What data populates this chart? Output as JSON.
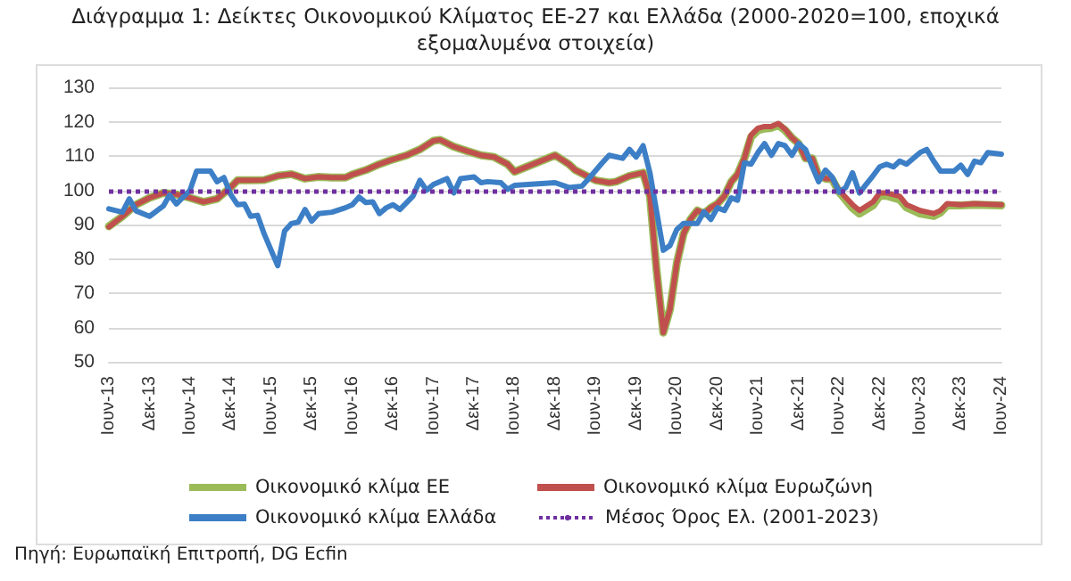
{
  "chart_data": {
    "type": "line",
    "title": "Διάγραμμα 1: Δείκτες Οικονομικού Κλίματος ΕΕ-27 και Ελλάδα (2000-2020=100, εποχικά εξομαλυμένα στοιχεία)",
    "annotations": [
      "Πηγή: Ευρωπαϊκή Επιτροπή, DG Ecfin"
    ],
    "xlim": [
      "2013-06",
      "2024-06"
    ],
    "xticks": [
      {
        "value": "2013-06",
        "label": "Ιουν-13"
      },
      {
        "value": "2013-12",
        "label": "Δεκ-13"
      },
      {
        "value": "2014-06",
        "label": "Ιουν-14"
      },
      {
        "value": "2014-12",
        "label": "Δεκ-14"
      },
      {
        "value": "2015-06",
        "label": "Ιουν-15"
      },
      {
        "value": "2015-12",
        "label": "Δεκ-15"
      },
      {
        "value": "2016-06",
        "label": "Ιουν-16"
      },
      {
        "value": "2016-12",
        "label": "Δεκ-16"
      },
      {
        "value": "2017-06",
        "label": "Ιουν-17"
      },
      {
        "value": "2017-12",
        "label": "Δεκ-17"
      },
      {
        "value": "2018-06",
        "label": "Ιουν-18"
      },
      {
        "value": "2018-12",
        "label": "Δεκ-18"
      },
      {
        "value": "2019-06",
        "label": "Ιουν-19"
      },
      {
        "value": "2019-12",
        "label": "Δεκ-19"
      },
      {
        "value": "2020-06",
        "label": "Ιουν-20"
      },
      {
        "value": "2020-12",
        "label": "Δεκ-20"
      },
      {
        "value": "2021-06",
        "label": "Ιουν-21"
      },
      {
        "value": "2021-12",
        "label": "Δεκ-21"
      },
      {
        "value": "2022-06",
        "label": "Ιουν-22"
      },
      {
        "value": "2022-12",
        "label": "Δεκ-22"
      },
      {
        "value": "2023-06",
        "label": "Ιουν-23"
      },
      {
        "value": "2023-12",
        "label": "Δεκ-23"
      },
      {
        "value": "2024-06",
        "label": "Ιουν-24"
      }
    ],
    "ylim": [
      50,
      130
    ],
    "yticks": [
      50,
      60,
      70,
      80,
      90,
      100,
      110,
      120,
      130
    ],
    "grid": "y",
    "legend": "bottom",
    "marker": "none",
    "line_style": "solid",
    "ref_lines": [
      {
        "axis": "y",
        "value": 99.5,
        "label": "Μέσος Όρος Ελ. (2001-2023)",
        "color": "#7030a0",
        "line_style": "dotted"
      }
    ],
    "series": [
      {
        "name": "Οικονομικό κλίμα ΕΕ",
        "color": "#9bbb59",
        "x": [
          "2013-06",
          "2013-08",
          "2013-10",
          "2013-12",
          "2014-02",
          "2014-04",
          "2014-06",
          "2014-08",
          "2014-10",
          "2014-11",
          "2014-12",
          "2015-01",
          "2015-03",
          "2015-05",
          "2015-07",
          "2015-09",
          "2015-11",
          "2016-01",
          "2016-03",
          "2016-05",
          "2016-06",
          "2016-08",
          "2016-10",
          "2016-12",
          "2017-02",
          "2017-04",
          "2017-06",
          "2017-07",
          "2017-09",
          "2017-11",
          "2018-01",
          "2018-03",
          "2018-05",
          "2018-06",
          "2018-12",
          "2019-02",
          "2019-03",
          "2019-05",
          "2019-06",
          "2019-08",
          "2019-09",
          "2019-11",
          "2020-01",
          "2020-02",
          "2020-03",
          "2020-04",
          "2020-05",
          "2020-06",
          "2020-07",
          "2020-08",
          "2020-09",
          "2020-10",
          "2020-11",
          "2020-12",
          "2021-01",
          "2021-02",
          "2021-03",
          "2021-04",
          "2021-05",
          "2021-06",
          "2021-07",
          "2021-08",
          "2021-09",
          "2021-10",
          "2021-11",
          "2021-12",
          "2022-01",
          "2022-02",
          "2022-03",
          "2022-04",
          "2022-05",
          "2022-06",
          "2022-08",
          "2022-09",
          "2022-11",
          "2022-12",
          "2023-01",
          "2023-03",
          "2023-04",
          "2023-06",
          "2023-08",
          "2023-09",
          "2023-10",
          "2023-12",
          "2024-02",
          "2024-06"
        ],
        "values": [
          89.5,
          92.4,
          95.8,
          97.8,
          99.2,
          98.8,
          97.8,
          96.6,
          97.5,
          99.2,
          100.8,
          102.9,
          102.9,
          103,
          104.2,
          104.7,
          103.4,
          103.9,
          103.7,
          103.7,
          104.6,
          105.9,
          107.6,
          109,
          110.2,
          111.9,
          114.4,
          114.7,
          112.7,
          111.4,
          110.2,
          109.7,
          107.6,
          105.4,
          110.2,
          107.6,
          105.9,
          103.9,
          102.9,
          102.2,
          102.5,
          104.2,
          105.1,
          98.3,
          77.1,
          58.5,
          65.3,
          78.8,
          87.3,
          91.5,
          94.1,
          93.2,
          94.9,
          96.1,
          98.3,
          102.5,
          104.6,
          109.3,
          115.5,
          117.5,
          118,
          118.2,
          119,
          117.5,
          115.3,
          113.6,
          109.3,
          109.3,
          104.2,
          103.4,
          103.2,
          99.5,
          94.8,
          93.2,
          95.6,
          98.4,
          98.4,
          97.3,
          95,
          93.2,
          92.5,
          93.5,
          95.6,
          95.6,
          95.8,
          95.6
        ]
      },
      {
        "name": "Οικονομικό κλίμα Ευρωζώνη",
        "color": "#c0504d",
        "x": [
          "2013-06",
          "2013-08",
          "2013-10",
          "2013-12",
          "2014-02",
          "2014-04",
          "2014-06",
          "2014-08",
          "2014-10",
          "2014-11",
          "2014-12",
          "2015-01",
          "2015-03",
          "2015-05",
          "2015-07",
          "2015-09",
          "2015-11",
          "2016-01",
          "2016-03",
          "2016-05",
          "2016-06",
          "2016-08",
          "2016-10",
          "2016-12",
          "2017-02",
          "2017-04",
          "2017-06",
          "2017-07",
          "2017-09",
          "2017-11",
          "2018-01",
          "2018-03",
          "2018-05",
          "2018-06",
          "2018-12",
          "2019-02",
          "2019-03",
          "2019-05",
          "2019-06",
          "2019-08",
          "2019-09",
          "2019-11",
          "2020-01",
          "2020-02",
          "2020-03",
          "2020-04",
          "2020-05",
          "2020-06",
          "2020-07",
          "2020-08",
          "2020-09",
          "2020-10",
          "2020-11",
          "2020-12",
          "2021-01",
          "2021-02",
          "2021-03",
          "2021-04",
          "2021-05",
          "2021-06",
          "2021-07",
          "2021-08",
          "2021-09",
          "2021-10",
          "2021-11",
          "2021-12",
          "2022-01",
          "2022-02",
          "2022-03",
          "2022-04",
          "2022-05",
          "2022-06",
          "2022-08",
          "2022-09",
          "2022-11",
          "2022-12",
          "2023-01",
          "2023-03",
          "2023-04",
          "2023-06",
          "2023-08",
          "2023-09",
          "2023-10",
          "2023-12",
          "2024-02",
          "2024-06"
        ],
        "values": [
          89.3,
          92.4,
          95.8,
          97.8,
          99.2,
          98.8,
          97.8,
          96.6,
          97.5,
          99.2,
          100.8,
          102.9,
          102.9,
          103,
          104.2,
          104.7,
          103.4,
          103.9,
          103.7,
          103.7,
          104.6,
          105.9,
          107.6,
          109,
          110.2,
          111.9,
          114.4,
          114.7,
          112.7,
          111.4,
          110.2,
          109.7,
          107.6,
          105.4,
          110.2,
          107.6,
          105.9,
          103.9,
          102.9,
          102.2,
          102.5,
          104.2,
          105.1,
          98.3,
          77.1,
          58.5,
          65.3,
          78.8,
          87.3,
          91.5,
          94.1,
          93.2,
          94.9,
          96.1,
          98.3,
          102.5,
          104.6,
          109.3,
          116.1,
          118.1,
          118.6,
          118.6,
          119.5,
          117.8,
          115.3,
          113.6,
          109.3,
          109.3,
          104.2,
          103.4,
          103.4,
          100,
          95.8,
          94.1,
          96.6,
          99.2,
          99.2,
          98.3,
          95.8,
          94.1,
          93.2,
          94.1,
          96.1,
          95.8,
          96.1,
          95.8
        ]
      },
      {
        "name": "Οικονομικό κλίμα Ελλάδα",
        "color": "#3d7fc6",
        "x": [
          "2013-06",
          "2013-08",
          "2013-09",
          "2013-10",
          "2013-12",
          "2014-02",
          "2014-03",
          "2014-04",
          "2014-06",
          "2014-07",
          "2014-09",
          "2014-10",
          "2014-11",
          "2014-12",
          "2015-01",
          "2015-02",
          "2015-03",
          "2015-04",
          "2015-05",
          "2015-07",
          "2015-08",
          "2015-09",
          "2015-10",
          "2015-11",
          "2015-12",
          "2016-01",
          "2016-03",
          "2016-05",
          "2016-06",
          "2016-07",
          "2016-08",
          "2016-09",
          "2016-10",
          "2016-11",
          "2016-12",
          "2017-01",
          "2017-03",
          "2017-04",
          "2017-05",
          "2017-06",
          "2017-08",
          "2017-09",
          "2017-10",
          "2017-12",
          "2018-01",
          "2018-02",
          "2018-04",
          "2018-05",
          "2018-06",
          "2018-12",
          "2019-02",
          "2019-04",
          "2019-05",
          "2019-07",
          "2019-08",
          "2019-10",
          "2019-11",
          "2019-12",
          "2020-01",
          "2020-02",
          "2020-04",
          "2020-05",
          "2020-06",
          "2020-07",
          "2020-09",
          "2020-10",
          "2020-11",
          "2020-12",
          "2021-01",
          "2021-02",
          "2021-03",
          "2021-04",
          "2021-05",
          "2021-06",
          "2021-07",
          "2021-08",
          "2021-09",
          "2021-10",
          "2021-11",
          "2021-12",
          "2022-01",
          "2022-02",
          "2022-03",
          "2022-04",
          "2022-05",
          "2022-06",
          "2022-07",
          "2022-08",
          "2022-09",
          "2022-10",
          "2022-11",
          "2022-12",
          "2023-01",
          "2023-02",
          "2023-03",
          "2023-04",
          "2023-06",
          "2023-07",
          "2023-08",
          "2023-09",
          "2023-11",
          "2023-12",
          "2024-01",
          "2024-02",
          "2024-03",
          "2024-04",
          "2024-06"
        ],
        "values": [
          94.6,
          93.6,
          97.5,
          94,
          92.4,
          95.4,
          98.6,
          96,
          100,
          105.6,
          105.6,
          102.5,
          103.7,
          98.8,
          95.8,
          96,
          92.4,
          92.7,
          87.3,
          78,
          88.1,
          90.3,
          90.7,
          94.4,
          91,
          93.2,
          93.6,
          94.9,
          95.8,
          98,
          96.4,
          96.6,
          93.2,
          94.9,
          95.8,
          94.4,
          98.3,
          102.9,
          100,
          101.7,
          103.4,
          99.2,
          103.4,
          103.9,
          102.2,
          102.5,
          102.2,
          100.3,
          101.4,
          102.2,
          100.8,
          101.2,
          103.4,
          108,
          110.2,
          109.3,
          111.9,
          109.7,
          113,
          105,
          82.5,
          83.9,
          88.6,
          90.3,
          90.3,
          93.7,
          91.5,
          94.9,
          94.1,
          97.8,
          97.1,
          108,
          107.6,
          111,
          113.6,
          110.2,
          113.6,
          113,
          110.2,
          113.6,
          111.9,
          106.8,
          102.5,
          105.9,
          103.9,
          99.5,
          100.8,
          105.1,
          99.2,
          101.7,
          104.2,
          106.8,
          107.6,
          106.8,
          108.5,
          107.6,
          111,
          111.9,
          108.5,
          105.6,
          105.6,
          107.3,
          104.6,
          108.5,
          108,
          111,
          110.5
        ]
      }
    ]
  }
}
